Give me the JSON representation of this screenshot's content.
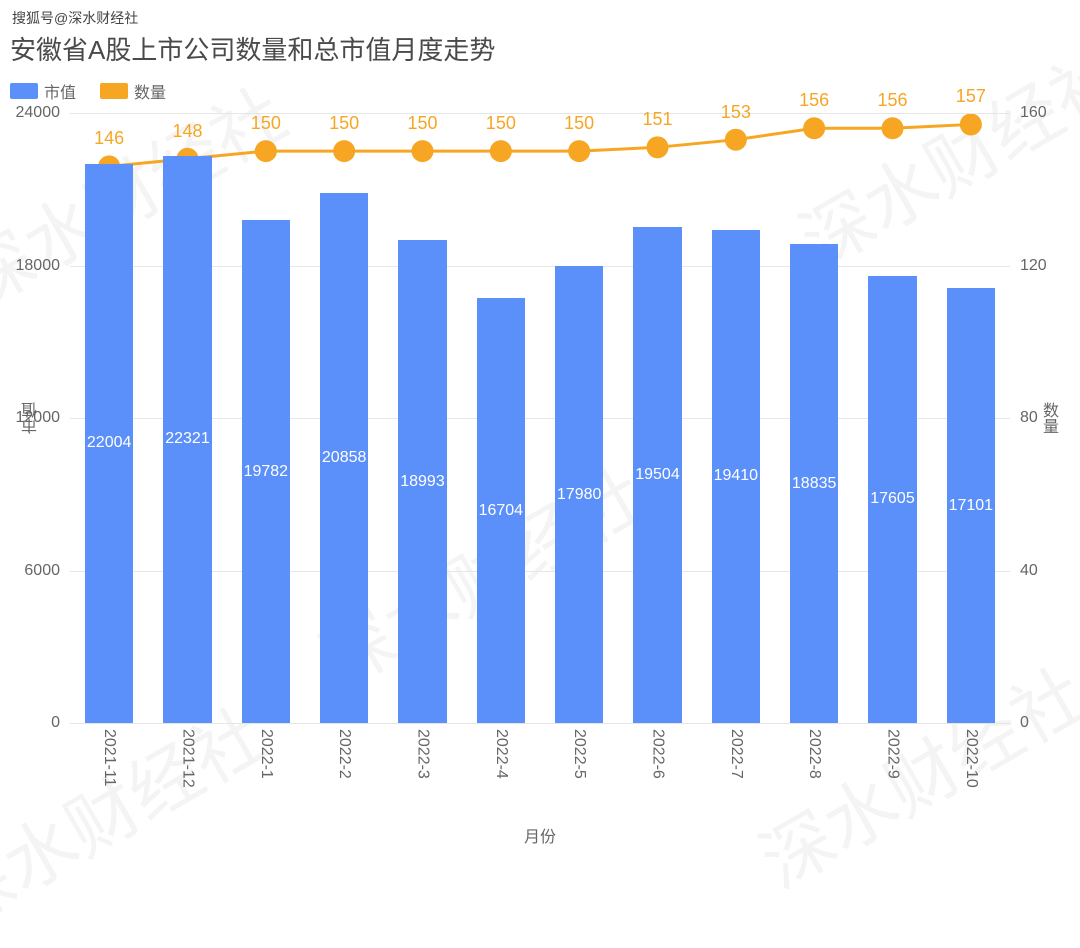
{
  "top_tag": "搜狐号@深水财经社",
  "watermark_text": "深水财经社",
  "chart": {
    "type": "bar+line",
    "title": "安徽省A股上市公司数量和总市值月度走势",
    "title_fontsize": 26,
    "title_color": "#4a4a4a",
    "background_color": "#ffffff",
    "grid_color": "#e6e6e6",
    "axis_font_color": "#666666",
    "axis_fontsize": 16,
    "legend": [
      {
        "label": "市值",
        "color": "#5b8ff9"
      },
      {
        "label": "数量",
        "color": "#f6a623"
      }
    ],
    "x": {
      "title": "月份",
      "categories": [
        "2021-11",
        "2021-12",
        "2022-1",
        "2022-2",
        "2022-3",
        "2022-4",
        "2022-5",
        "2022-6",
        "2022-7",
        "2022-8",
        "2022-9",
        "2022-10"
      ]
    },
    "y_left": {
      "title": "市值",
      "min": 0,
      "max": 24000,
      "tick_step": 6000
    },
    "y_right": {
      "title": "数量",
      "min": 0,
      "max": 160,
      "tick_step": 40
    },
    "bars": {
      "color": "#5b8ff9",
      "value_color": "#ffffff",
      "bar_width_ratio": 0.62,
      "values": [
        22004,
        22321,
        19782,
        20858,
        18993,
        16704,
        17980,
        19504,
        19410,
        18835,
        17605,
        17101
      ]
    },
    "line": {
      "color": "#f6a623",
      "marker_radius": 11,
      "label_color": "#f6a623",
      "label_fontsize": 18,
      "line_width": 3,
      "values": [
        146,
        148,
        150,
        150,
        150,
        150,
        150,
        151,
        153,
        156,
        156,
        157
      ]
    }
  }
}
